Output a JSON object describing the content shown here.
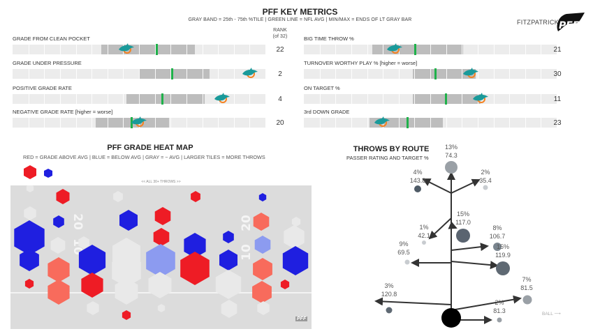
{
  "header": {
    "title": "PFF KEY METRICS",
    "subtitle": "GRAY BAND = 25th - 75th %TILE | GREEN LINE = NFL AVG | MIN/MAX = ENDS OF LT GRAY BAR",
    "rank_header": "RANK",
    "rank_subheader": "(of 32)",
    "player": "FITZPATRICK",
    "pff_logo_text": "PFF"
  },
  "colors": {
    "band": "#bdbdbd",
    "bar": "#ececec",
    "avg_line": "#1fb14a",
    "dolphin_teal": "#1a9a9a",
    "dolphin_orange": "#f58220",
    "red": "#ee1c25",
    "blue": "#1f1fe0"
  },
  "metrics": [
    {
      "label": "GRADE FROM CLEAN POCKET",
      "rank": "22",
      "band": [
        0.35,
        0.72
      ],
      "avg": 0.57,
      "player": 0.45
    },
    {
      "label": "GRADE UNDER PRESSURE",
      "rank": "2",
      "band": [
        0.5,
        0.78
      ],
      "avg": 0.63,
      "player": 0.94
    },
    {
      "label": "POSITIVE GRADE RATE",
      "rank": "4",
      "band": [
        0.45,
        0.76
      ],
      "avg": 0.59,
      "player": 0.83
    },
    {
      "label": "NEGATIVE GRADE RATE [higher = worse]",
      "rank": "20",
      "band": [
        0.33,
        0.62
      ],
      "avg": 0.47,
      "player": 0.5
    },
    {
      "label": "BIG TIME THROW %",
      "rank": "21",
      "band": [
        0.27,
        0.63
      ],
      "avg": 0.44,
      "player": 0.36
    },
    {
      "label": "TURNOVER WORTHY PLAY % [higher = worse]",
      "rank": "30",
      "band": [
        0.43,
        0.68
      ],
      "avg": 0.52,
      "player": 0.66
    },
    {
      "label": "ON TARGET %",
      "rank": "11",
      "band": [
        0.43,
        0.7
      ],
      "avg": 0.56,
      "player": 0.7
    },
    {
      "label": "3rd DOWN GRADE",
      "rank": "23",
      "band": [
        0.26,
        0.55
      ],
      "avg": 0.41,
      "player": 0.31
    }
  ],
  "heatmap": {
    "title": "PFF GRADE HEAT MAP",
    "legend_text": "RED = GRADE ABOVE AVG | BLUE = BELOW AVG | GRAY = ~ AVG | LARGER TILES = MORE THROWS",
    "field_note": "<< ALL 30+ THROWS >>",
    "yard_numbers": [
      "20",
      "10",
      "20",
      "10"
    ],
    "logo_text": "PFF"
  },
  "route_chart": {
    "title": "THROWS BY ROUTE",
    "subtitle": "PASSER RATING AND TARGET %",
    "ball_label": "BALL",
    "routes": [
      {
        "pct": "13%",
        "rating": "74.3",
        "x": 0.0,
        "y": 34
      },
      {
        "pct": "4%",
        "rating": "143.8",
        "x": -8,
        "y": 25
      },
      {
        "pct": "2%",
        "rating": "35.4",
        "x": 8,
        "y": 25
      },
      {
        "pct": "15%",
        "rating": "117.0",
        "x": 2,
        "y": 14
      },
      {
        "pct": "1%",
        "rating": "42.1",
        "x": -6,
        "y": 12
      },
      {
        "pct": "8%",
        "rating": "106.7",
        "x": 11,
        "y": 11
      },
      {
        "pct": "15%",
        "rating": "119.9",
        "x": 12,
        "y": 7
      },
      {
        "pct": "9%",
        "rating": "69.5",
        "x": -9,
        "y": 8
      },
      {
        "pct": "3%",
        "rating": "120.8",
        "x": -15,
        "y": 1
      },
      {
        "pct": "7%",
        "rating": "81.5",
        "x": 18,
        "y": 2
      },
      {
        "pct": "2%",
        "rating": "81.3",
        "x": 11,
        "y": 0
      }
    ]
  }
}
